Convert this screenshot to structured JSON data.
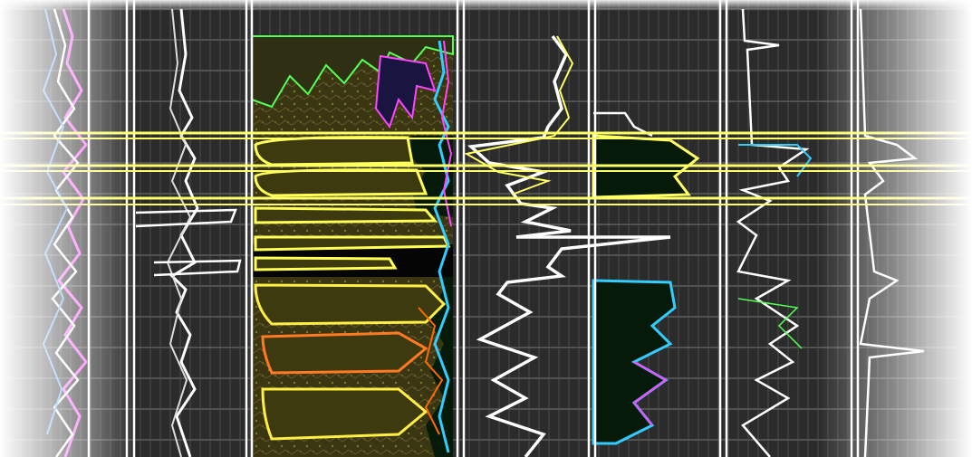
{
  "image": {
    "subject": "well-log-tracks-edge-detected",
    "palette": {
      "background": "#2b2b2b",
      "grid": "#8a8a8a",
      "track_border": "#ffffff",
      "curve_white": "#ffffff",
      "band_yellow": "#ffff66",
      "lithology_fill": "#3e3a10",
      "fill_black": "#050505",
      "fill_green": "#0c2a10",
      "edge_orange": "#ff6a00",
      "edge_green": "#55ff55",
      "edge_cyan": "#33ccff",
      "edge_magenta": "#ff44ff",
      "edge_blue": "#3344ff",
      "fade": "#ffffff"
    }
  }
}
